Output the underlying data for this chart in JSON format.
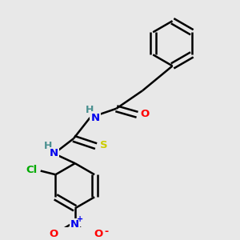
{
  "bg_color": "#e8e8e8",
  "bond_color": "#000000",
  "bond_width": 1.8,
  "atom_colors": {
    "N": "#0000ee",
    "O": "#ff0000",
    "S": "#cccc00",
    "Cl": "#00aa00",
    "C": "#000000",
    "H": "#4a9090"
  },
  "font_size": 9.5,
  "small_font_size": 7,
  "figsize": [
    3.0,
    3.0
  ],
  "dpi": 100,
  "xlim": [
    0,
    3.0
  ],
  "ylim": [
    0,
    3.0
  ]
}
